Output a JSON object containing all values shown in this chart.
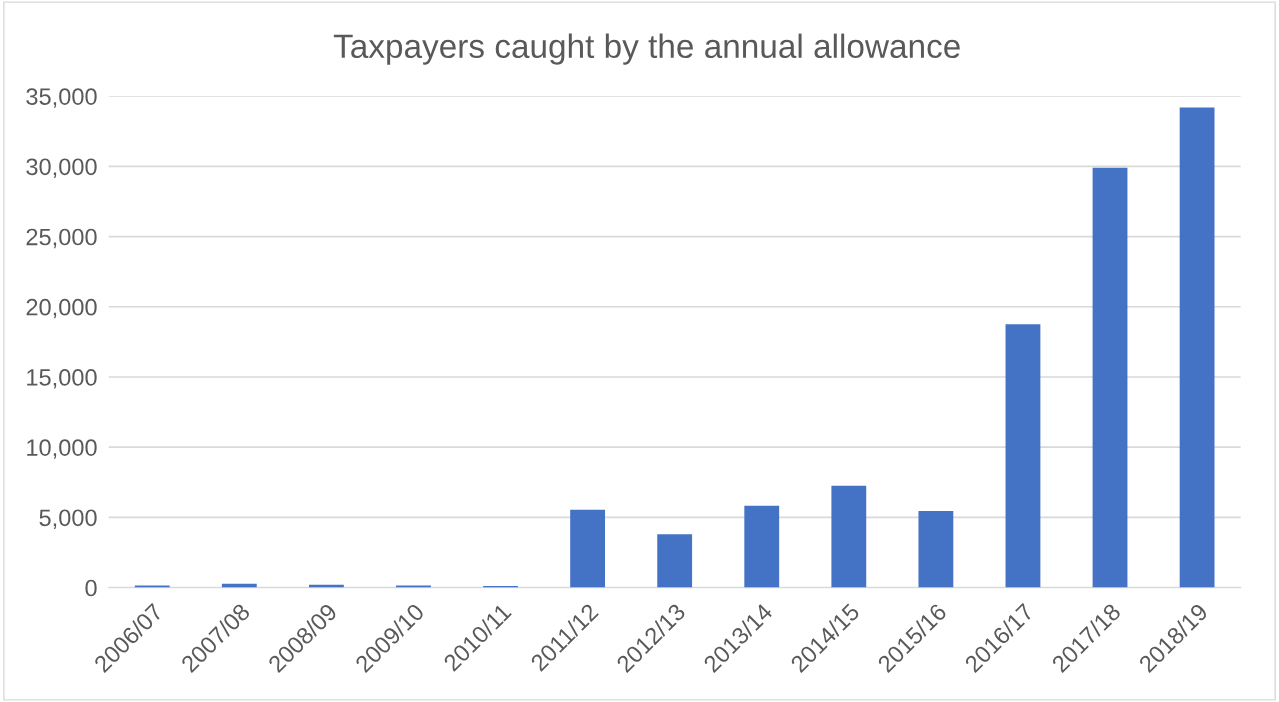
{
  "chart_data": {
    "type": "bar",
    "title": "Taxpayers caught by the annual allowance",
    "categories": [
      "2006/07",
      "2007/08",
      "2008/09",
      "2009/10",
      "2010/11",
      "2011/12",
      "2012/13",
      "2013/14",
      "2014/15",
      "2015/16",
      "2016/17",
      "2017/18",
      "2018/19"
    ],
    "values": [
      150,
      280,
      200,
      150,
      120,
      5550,
      3800,
      5820,
      7260,
      5460,
      18760,
      29900,
      34200
    ],
    "color": "#4472c4",
    "ylim": [
      0,
      35000
    ],
    "yticks": [
      {
        "value": 0,
        "label": "0"
      },
      {
        "value": 5000,
        "label": "5,000"
      },
      {
        "value": 10000,
        "label": "10,000"
      },
      {
        "value": 15000,
        "label": "15,000"
      },
      {
        "value": 20000,
        "label": "20,000"
      },
      {
        "value": 25000,
        "label": "25,000"
      },
      {
        "value": 30000,
        "label": "30,000"
      },
      {
        "value": 35000,
        "label": "35,000"
      }
    ],
    "grid": "y",
    "legend": false
  }
}
